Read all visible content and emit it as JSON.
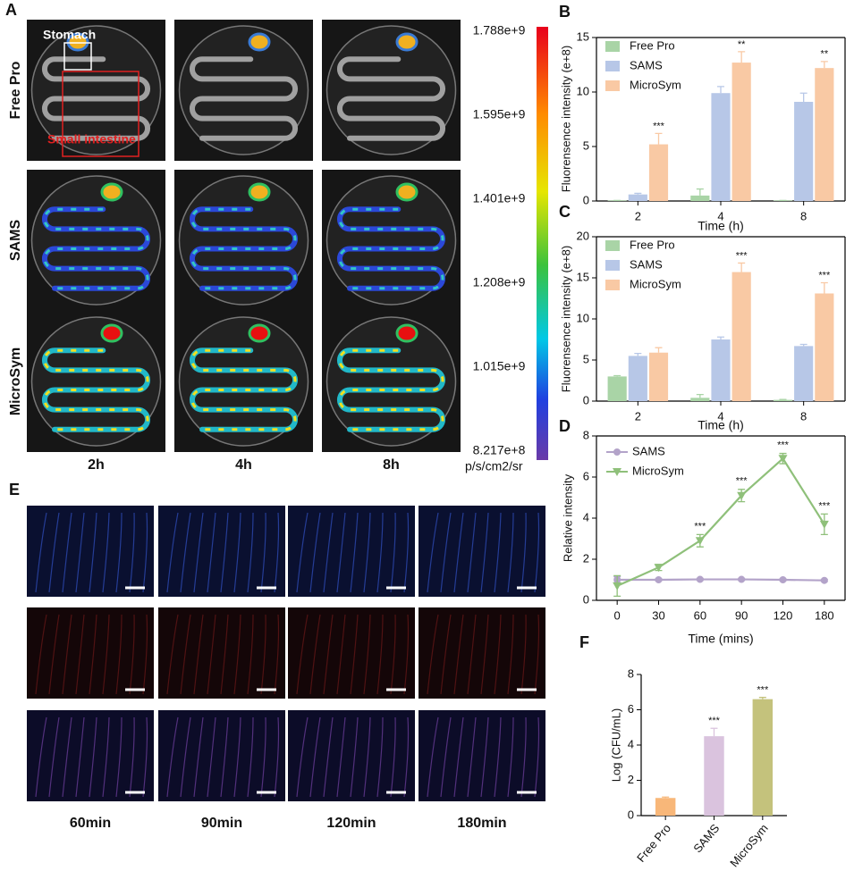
{
  "panel_a": {
    "label": "A",
    "rows": [
      "Free Pro",
      "SAMS",
      "MicroSym"
    ],
    "columns": [
      "2h",
      "4h",
      "8h"
    ],
    "stomach_label": "Stomach",
    "intestine_label": "Small intestine",
    "colorbar": {
      "labels": [
        "1.788e+9",
        "1.595e+9",
        "1.401e+9",
        "1.208e+9",
        "1.015e+9",
        "8.217e+8"
      ],
      "unit": "p/s/cm2/sr"
    }
  },
  "panel_e": {
    "label": "E",
    "columns": [
      "60min",
      "90min",
      "120min",
      "180min"
    ]
  },
  "chart_data": [
    {
      "type": "bar",
      "panel_label": "B",
      "x_label": "Time (h)",
      "y_label": "Fluorensence intensity (e+8)",
      "categories": [
        "2",
        "4",
        "8"
      ],
      "ylim": [
        0,
        15
      ],
      "yticks": [
        0,
        5,
        10,
        15
      ],
      "series": [
        {
          "name": "Free Pro",
          "color": "#a9d4a6",
          "values": [
            0.05,
            0.5,
            0.05
          ],
          "errors": [
            0,
            0.6,
            0
          ]
        },
        {
          "name": "SAMS",
          "color": "#b7c7e7",
          "values": [
            0.6,
            9.9,
            9.1
          ],
          "errors": [
            0.1,
            0.6,
            0.8
          ]
        },
        {
          "name": "MicroSym",
          "color": "#f9c9a4",
          "values": [
            5.2,
            12.7,
            12.2
          ],
          "errors": [
            1.0,
            1.0,
            0.6
          ],
          "annotations": [
            "***",
            "**",
            "**"
          ]
        }
      ]
    },
    {
      "type": "bar",
      "panel_label": "C",
      "x_label": "Time (h)",
      "y_label": "Fluorensence intensity (e+8)",
      "categories": [
        "2",
        "4",
        "8"
      ],
      "ylim": [
        0,
        20
      ],
      "yticks": [
        0,
        5,
        10,
        15,
        20
      ],
      "series": [
        {
          "name": "Free Pro",
          "color": "#a9d4a6",
          "values": [
            3.0,
            0.4,
            0.15
          ],
          "errors": [
            0.1,
            0.4,
            0.05
          ]
        },
        {
          "name": "SAMS",
          "color": "#b7c7e7",
          "values": [
            5.5,
            7.5,
            6.7
          ],
          "errors": [
            0.3,
            0.3,
            0.2
          ]
        },
        {
          "name": "MicroSym",
          "color": "#f9c9a4",
          "values": [
            5.9,
            15.7,
            13.1
          ],
          "errors": [
            0.6,
            1.1,
            1.3
          ],
          "annotations": [
            null,
            "***",
            "***"
          ]
        }
      ]
    },
    {
      "type": "line",
      "panel_label": "D",
      "x_label": "Time (mins)",
      "y_label": "Relative intensity",
      "categories": [
        "0",
        "30",
        "60",
        "90",
        "120",
        "180"
      ],
      "ylim": [
        0,
        8
      ],
      "yticks": [
        0,
        2,
        4,
        6,
        8
      ],
      "series": [
        {
          "name": "SAMS",
          "color": "#b3a3c9",
          "marker": "circle",
          "values": [
            1.0,
            1.0,
            1.02,
            1.02,
            1.0,
            0.97
          ],
          "errors": [
            0.15,
            0.05,
            0.05,
            0.05,
            0.05,
            0.05
          ]
        },
        {
          "name": "MicroSym",
          "color": "#8fc07a",
          "marker": "triangle",
          "values": [
            0.7,
            1.6,
            2.9,
            5.1,
            6.9,
            3.7
          ],
          "errors": [
            0.5,
            0.15,
            0.3,
            0.3,
            0.25,
            0.5
          ],
          "annotations": [
            null,
            null,
            "***",
            "***",
            "***",
            "***"
          ]
        }
      ]
    },
    {
      "type": "bar",
      "panel_label": "F",
      "y_label": "Log (CFU/mL)",
      "categories": [
        "Free Pro",
        "SAMS",
        "MicroSym"
      ],
      "ylim": [
        0,
        8
      ],
      "yticks": [
        0,
        2,
        4,
        6,
        8
      ],
      "series": [
        {
          "colors": [
            "#f8b779",
            "#dac3de",
            "#c4c27c"
          ],
          "values": [
            1.0,
            4.5,
            6.6
          ],
          "errors": [
            0.05,
            0.45,
            0.1
          ],
          "annotations": [
            null,
            "***",
            "***"
          ]
        }
      ]
    }
  ]
}
